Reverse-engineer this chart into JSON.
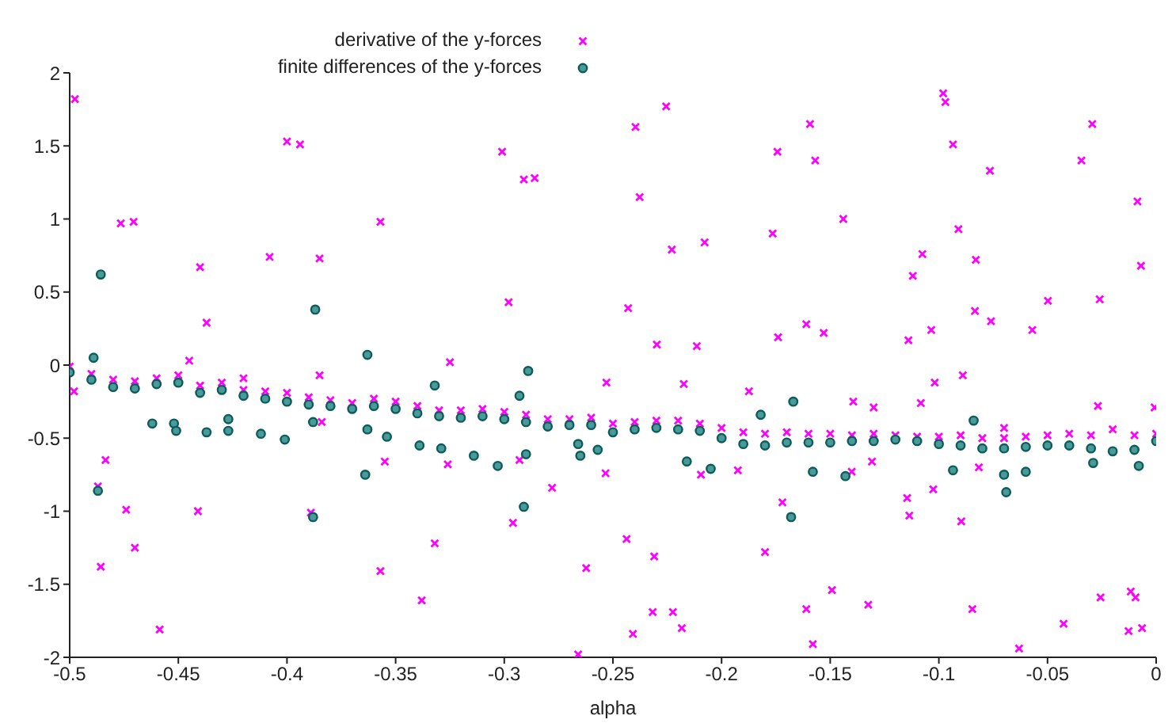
{
  "chart_data": {
    "type": "scatter",
    "xlabel": "alpha",
    "xlim": [
      -0.5,
      0
    ],
    "xticks": [
      -0.5,
      -0.45,
      -0.4,
      -0.35,
      -0.3,
      -0.25,
      -0.2,
      -0.15,
      -0.1,
      -0.05,
      0
    ],
    "ylim": [
      -2,
      2
    ],
    "yticks": [
      -2,
      -1.5,
      -1,
      -0.5,
      0,
      0.5,
      1,
      1.5,
      2
    ],
    "grid": false,
    "legend": "top",
    "series": [
      {
        "name": "derivative of the y-forces",
        "color": "#ff00ff",
        "marker": "cross",
        "x": [
          -0.5,
          -0.49,
          -0.48,
          -0.47,
          -0.46,
          -0.45,
          -0.44,
          -0.43,
          -0.42,
          -0.41,
          -0.4,
          -0.39,
          -0.38,
          -0.37,
          -0.36,
          -0.35,
          -0.34,
          -0.33,
          -0.32,
          -0.31,
          -0.3,
          -0.29,
          -0.28,
          -0.27,
          -0.26,
          -0.25,
          -0.24,
          -0.23,
          -0.22,
          -0.21,
          -0.2,
          -0.19,
          -0.18,
          -0.17,
          -0.16,
          -0.15,
          -0.14,
          -0.13,
          -0.12,
          -0.11,
          -0.1,
          -0.09,
          -0.08,
          -0.07,
          -0.06,
          -0.05,
          -0.04,
          -0.03,
          -0.02,
          -0.01,
          0,
          -0.4976,
          -0.4765,
          -0.4706,
          -0.44,
          -0.437,
          -0.408,
          -0.4,
          -0.394,
          -0.385,
          -0.357,
          -0.301,
          -0.298,
          -0.291,
          -0.286,
          -0.2396,
          -0.2255,
          -0.2377,
          -0.2229,
          -0.2078,
          -0.243,
          -0.2298,
          -0.2114,
          -0.1743,
          -0.1593,
          -0.1569,
          -0.1765,
          -0.144,
          -0.161,
          -0.174,
          -0.153,
          -0.114,
          -0.1035,
          -0.112,
          -0.1076,
          -0.098,
          -0.097,
          -0.0935,
          -0.091,
          -0.083,
          -0.0765,
          -0.0834,
          -0.076,
          -0.057,
          -0.0498,
          -0.0344,
          -0.0294,
          -0.026,
          -0.0086,
          -0.007,
          -0.498,
          -0.487,
          -0.4857,
          -0.4835,
          -0.474,
          -0.47,
          -0.4586,
          -0.441,
          -0.445,
          -0.42,
          -0.385,
          -0.384,
          -0.389,
          -0.355,
          -0.357,
          -0.338,
          -0.332,
          -0.326,
          -0.325,
          -0.296,
          -0.293,
          -0.278,
          -0.266,
          -0.2623,
          -0.253,
          -0.2534,
          -0.2437,
          -0.231,
          -0.2317,
          -0.2224,
          -0.2408,
          -0.2183,
          -0.2174,
          -0.2095,
          -0.1874,
          -0.1925,
          -0.18,
          -0.172,
          -0.161,
          -0.158,
          -0.1492,
          -0.1394,
          -0.1401,
          -0.13,
          -0.1308,
          -0.1325,
          -0.1146,
          -0.1136,
          -0.1083,
          -0.1019,
          -0.1026,
          -0.089,
          -0.0897,
          -0.0816,
          -0.0846,
          -0.0631,
          -0.07,
          -0.0268,
          -0.0256,
          -0.0426,
          -0.0117,
          -0.0095,
          -0.0127,
          -0.0065,
          -0.0007
        ],
        "values": [
          -0.01,
          -0.06,
          -0.1,
          -0.11,
          -0.09,
          -0.07,
          -0.14,
          -0.12,
          -0.17,
          -0.18,
          -0.19,
          -0.22,
          -0.24,
          -0.26,
          -0.23,
          -0.25,
          -0.28,
          -0.31,
          -0.31,
          -0.3,
          -0.32,
          -0.34,
          -0.37,
          -0.37,
          -0.36,
          -0.4,
          -0.39,
          -0.38,
          -0.38,
          -0.4,
          -0.43,
          -0.46,
          -0.47,
          -0.46,
          -0.47,
          -0.47,
          -0.48,
          -0.47,
          -0.48,
          -0.49,
          -0.49,
          -0.48,
          -0.5,
          -0.5,
          -0.49,
          -0.48,
          -0.47,
          -0.48,
          -0.44,
          -0.48,
          -0.47,
          1.82,
          0.97,
          0.98,
          0.67,
          0.29,
          0.74,
          1.53,
          1.51,
          0.73,
          0.98,
          1.46,
          0.43,
          1.27,
          1.28,
          1.63,
          1.77,
          1.15,
          0.79,
          0.84,
          0.39,
          0.14,
          0.13,
          1.46,
          1.65,
          1.4,
          0.9,
          1,
          0.28,
          0.19,
          0.22,
          0.17,
          0.24,
          0.61,
          0.76,
          1.86,
          1.8,
          1.51,
          0.93,
          0.72,
          1.33,
          0.37,
          0.3,
          0.24,
          0.44,
          1.4,
          1.65,
          0.45,
          1.12,
          0.68,
          -0.18,
          -0.83,
          -1.38,
          -0.65,
          -0.99,
          -1.25,
          -1.81,
          -1,
          0.03,
          -0.09,
          -0.07,
          -0.39,
          -1.01,
          -0.66,
          -1.41,
          -1.61,
          -1.22,
          -0.68,
          0.02,
          -1.08,
          -0.65,
          -0.84,
          -1.98,
          -1.39,
          -0.12,
          -0.74,
          -1.19,
          -1.31,
          -1.69,
          -1.69,
          -1.84,
          -1.8,
          -0.13,
          -0.75,
          -0.18,
          -0.72,
          -1.28,
          -0.94,
          -1.67,
          -1.91,
          -1.54,
          -0.25,
          -0.73,
          -0.29,
          -0.66,
          -1.64,
          -0.91,
          -1.03,
          -0.26,
          -0.12,
          -0.85,
          -0.07,
          -1.07,
          -0.7,
          -1.67,
          -1.94,
          -0.43,
          -0.28,
          -1.59,
          -1.77,
          -1.55,
          -1.59,
          -1.82,
          -1.8,
          -0.29
        ]
      },
      {
        "name": "finite differences of the y-forces",
        "color": "#0d5c5c",
        "marker": "circle",
        "x": [
          -0.5,
          -0.49,
          -0.48,
          -0.47,
          -0.46,
          -0.45,
          -0.44,
          -0.43,
          -0.42,
          -0.41,
          -0.4,
          -0.39,
          -0.38,
          -0.37,
          -0.36,
          -0.35,
          -0.34,
          -0.33,
          -0.32,
          -0.31,
          -0.3,
          -0.29,
          -0.28,
          -0.27,
          -0.26,
          -0.25,
          -0.24,
          -0.23,
          -0.22,
          -0.21,
          -0.2,
          -0.19,
          -0.18,
          -0.17,
          -0.16,
          -0.15,
          -0.14,
          -0.13,
          -0.12,
          -0.11,
          -0.1,
          -0.09,
          -0.08,
          -0.07,
          -0.06,
          -0.05,
          -0.04,
          -0.03,
          -0.02,
          -0.01,
          0,
          -0.4857,
          -0.387,
          -0.363,
          -0.489,
          -0.487,
          -0.462,
          -0.452,
          -0.451,
          -0.437,
          -0.427,
          -0.427,
          -0.412,
          -0.401,
          -0.388,
          -0.388,
          -0.364,
          -0.363,
          -0.354,
          -0.339,
          -0.329,
          -0.332,
          -0.314,
          -0.303,
          -0.291,
          -0.289,
          -0.293,
          -0.29,
          -0.265,
          -0.257,
          -0.266,
          -0.168,
          -0.182,
          -0.167,
          -0.069,
          -0.07,
          -0.143,
          -0.158,
          -0.084,
          -0.06,
          -0.216,
          -0.205,
          -0.0935,
          -0.008,
          -0.029
        ],
        "values": [
          -0.05,
          -0.1,
          -0.15,
          -0.16,
          -0.13,
          -0.12,
          -0.19,
          -0.17,
          -0.21,
          -0.23,
          -0.25,
          -0.27,
          -0.28,
          -0.3,
          -0.28,
          -0.3,
          -0.33,
          -0.35,
          -0.36,
          -0.35,
          -0.37,
          -0.39,
          -0.42,
          -0.41,
          -0.41,
          -0.46,
          -0.44,
          -0.43,
          -0.44,
          -0.45,
          -0.5,
          -0.54,
          -0.55,
          -0.53,
          -0.53,
          -0.53,
          -0.52,
          -0.52,
          -0.51,
          -0.52,
          -0.54,
          -0.55,
          -0.57,
          -0.57,
          -0.56,
          -0.55,
          -0.55,
          -0.57,
          -0.59,
          -0.58,
          -0.52,
          0.62,
          0.38,
          0.07,
          0.05,
          -0.86,
          -0.4,
          -0.4,
          -0.45,
          -0.46,
          -0.45,
          -0.37,
          -0.47,
          -0.51,
          -1.04,
          -0.39,
          -0.75,
          -0.44,
          -0.49,
          -0.55,
          -0.57,
          -0.14,
          -0.62,
          -0.69,
          -0.97,
          -0.04,
          -0.21,
          -0.61,
          -0.62,
          -0.58,
          -0.54,
          -1.04,
          -0.34,
          -0.25,
          -0.87,
          -0.75,
          -0.76,
          -0.73,
          -0.38,
          -0.73,
          -0.66,
          -0.71,
          -0.72,
          -0.69,
          -0.67
        ]
      }
    ]
  }
}
